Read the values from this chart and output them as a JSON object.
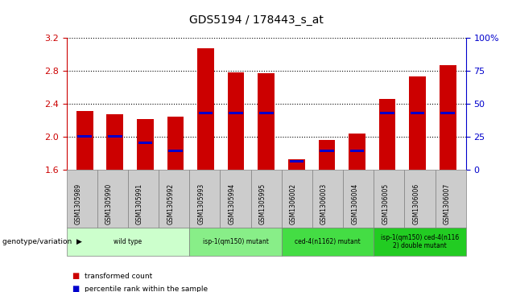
{
  "title": "GDS5194 / 178443_s_at",
  "samples": [
    "GSM1305989",
    "GSM1305990",
    "GSM1305991",
    "GSM1305992",
    "GSM1305993",
    "GSM1305994",
    "GSM1305995",
    "GSM1306002",
    "GSM1306003",
    "GSM1306004",
    "GSM1306005",
    "GSM1306006",
    "GSM1306007"
  ],
  "transformed_counts": [
    2.31,
    2.27,
    2.21,
    2.24,
    3.07,
    2.78,
    2.77,
    1.72,
    1.96,
    2.04,
    2.46,
    2.73,
    2.87
  ],
  "percentile_ranks": [
    25,
    25,
    20,
    14,
    43,
    43,
    43,
    6,
    14,
    14,
    43,
    43,
    43
  ],
  "bar_bottom": 1.6,
  "ylim_left": [
    1.6,
    3.2
  ],
  "ylim_right": [
    0,
    100
  ],
  "yticks_left": [
    1.6,
    2.0,
    2.4,
    2.8,
    3.2
  ],
  "yticks_right": [
    0,
    25,
    50,
    75,
    100
  ],
  "groups": [
    {
      "label": "wild type",
      "start": 0,
      "end": 3,
      "color": "#ccffcc"
    },
    {
      "label": "isp-1(qm150) mutant",
      "start": 4,
      "end": 6,
      "color": "#88ee88"
    },
    {
      "label": "ced-4(n1162) mutant",
      "start": 7,
      "end": 9,
      "color": "#44dd44"
    },
    {
      "label": "isp-1(qm150) ced-4(n116\n2) double mutant",
      "start": 10,
      "end": 12,
      "color": "#22cc22"
    }
  ],
  "bar_color": "#cc0000",
  "percentile_color": "#0000cc",
  "left_axis_color": "#cc0000",
  "right_axis_color": "#0000cc",
  "sample_box_color": "#cccccc",
  "genotype_label": "genotype/variation"
}
